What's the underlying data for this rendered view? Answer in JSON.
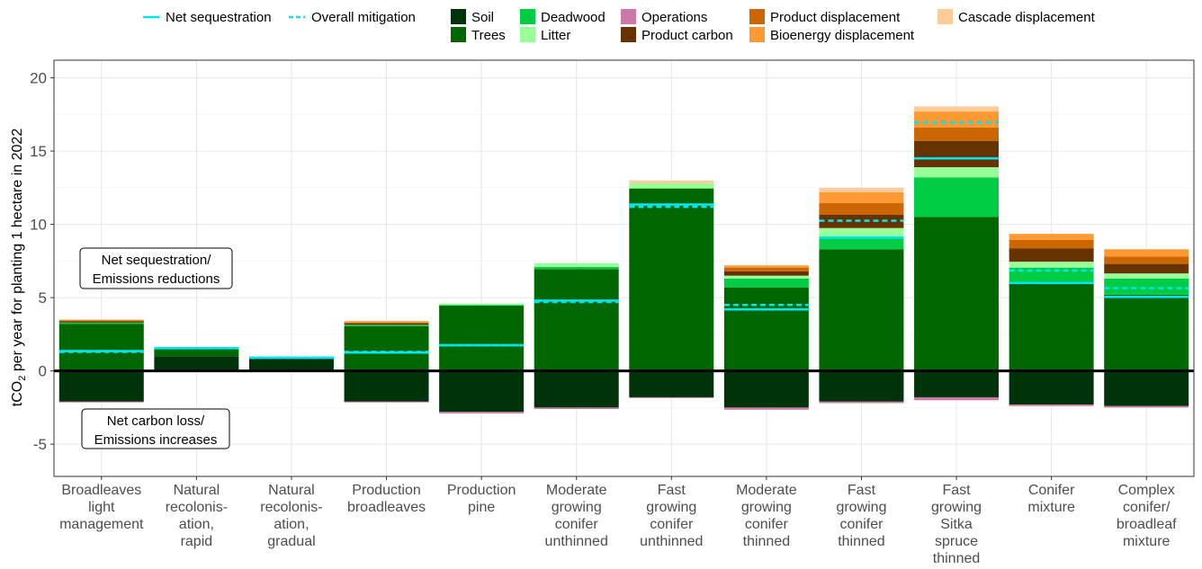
{
  "chart_data": {
    "type": "bar",
    "stacked": true,
    "title": "",
    "xlabel": "",
    "ylabel_main": "tCO",
    "ylabel_sub": "2",
    "ylabel_rest": " per year for planting 1 hectare in 2022",
    "ylim": [
      -7.2,
      21.2
    ],
    "yticks": [
      -5,
      0,
      5,
      10,
      15,
      20
    ],
    "ytick_labels": [
      "-5",
      "0",
      "5",
      "10",
      "15",
      "20"
    ],
    "grid": true,
    "legend_position": "top",
    "categories": [
      [
        "Broadleaves",
        "light",
        "management"
      ],
      [
        "Natural",
        "recolonis-",
        "ation,",
        "rapid"
      ],
      [
        "Natural",
        "recolonis-",
        "ation,",
        "gradual"
      ],
      [
        "Production",
        "broadleaves"
      ],
      [
        "Production",
        "pine"
      ],
      [
        "Moderate",
        "growing",
        "conifer",
        "unthinned"
      ],
      [
        "Fast",
        "growing",
        "conifer",
        "unthinned"
      ],
      [
        "Moderate",
        "growing",
        "conifer",
        "thinned"
      ],
      [
        "Fast",
        "growing",
        "conifer",
        "thinned"
      ],
      [
        "Fast",
        "growing",
        "Sitka",
        "spruce",
        "thinned"
      ],
      [
        "Conifer",
        "mixture"
      ],
      [
        "Complex",
        "conifer/",
        "broadleaf",
        "mixture"
      ]
    ],
    "series": [
      {
        "name": "Soil",
        "color": "#00330a",
        "values": [
          -2.1,
          1.0,
          0.85,
          -2.1,
          -2.8,
          -2.5,
          -1.8,
          -2.5,
          -2.1,
          -1.8,
          -2.3,
          -2.4
        ]
      },
      {
        "name": "Trees",
        "color": "#006600",
        "values": [
          3.2,
          0.5,
          0.05,
          3.05,
          4.45,
          6.95,
          12.45,
          5.7,
          8.3,
          10.5,
          6.05,
          5.2
        ]
      },
      {
        "name": "Deadwood",
        "color": "#00cc44",
        "values": [
          0.1,
          0.05,
          0,
          0.1,
          0.05,
          0.15,
          0,
          0.6,
          0.85,
          2.7,
          1.0,
          1.1
        ]
      },
      {
        "name": "Litter",
        "color": "#99ff99",
        "values": [
          0,
          0.05,
          0,
          0,
          0.1,
          0.25,
          0.35,
          0.2,
          0.6,
          0.7,
          0.4,
          0.35
        ]
      },
      {
        "name": "Operations",
        "color": "#cc79a7",
        "values": [
          -0.05,
          0,
          0,
          -0.05,
          -0.1,
          -0.1,
          -0.05,
          -0.15,
          -0.1,
          -0.2,
          -0.1,
          -0.1
        ]
      },
      {
        "name": "Product carbon",
        "color": "#663300",
        "values": [
          0.1,
          0,
          0,
          0.1,
          0,
          0,
          0,
          0.3,
          0.9,
          1.8,
          0.9,
          0.65
        ]
      },
      {
        "name": "Product displacement",
        "color": "#cc6600",
        "values": [
          0.05,
          0,
          0,
          0.05,
          0,
          0,
          0,
          0.25,
          0.8,
          0.9,
          0.6,
          0.5
        ]
      },
      {
        "name": "Bioenergy displacement",
        "color": "#ff9933",
        "values": [
          0.05,
          0,
          0,
          0.1,
          0,
          0,
          0,
          0.15,
          0.75,
          1.1,
          0.4,
          0.5
        ]
      },
      {
        "name": "Cascade displacement",
        "color": "#ffcc99",
        "values": [
          0,
          0,
          0,
          0,
          0,
          0,
          0.2,
          0,
          0.3,
          0.35,
          0,
          0
        ]
      }
    ],
    "lines": [
      {
        "name": "Net sequestration",
        "style": "solid",
        "color": "#00e5ee",
        "values": [
          1.35,
          1.55,
          0.9,
          1.25,
          1.75,
          4.8,
          11.35,
          4.2,
          9.1,
          14.5,
          6.0,
          5.05
        ]
      },
      {
        "name": "Overall mitigation",
        "style": "dashed",
        "color": "#00e5ee",
        "values": [
          1.3,
          1.55,
          0.9,
          1.3,
          1.75,
          4.7,
          11.2,
          4.5,
          10.25,
          16.95,
          6.85,
          5.65
        ]
      }
    ],
    "annotations": [
      {
        "lines": [
          "Net sequestration/",
          "Emissions reductions"
        ]
      },
      {
        "lines": [
          "Net carbon loss/",
          "Emissions increases"
        ]
      }
    ]
  }
}
